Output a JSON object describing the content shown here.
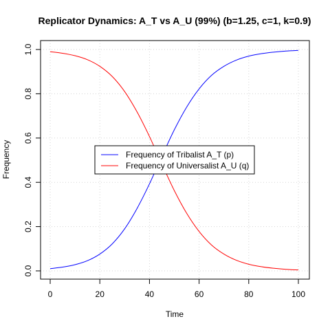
{
  "chart_data": {
    "type": "line",
    "title": "Replicator Dynamics: A_T vs A_U (99%) (b=1.25, c=1, k=0.9)",
    "xlabel": "Time",
    "ylabel": "Frequency",
    "xlim": [
      0,
      100
    ],
    "ylim": [
      0,
      1
    ],
    "xticks": [
      0,
      20,
      40,
      60,
      80,
      100
    ],
    "yticks": [
      0.0,
      0.2,
      0.4,
      0.6,
      0.8,
      1.0
    ],
    "xtick_labels": [
      "0",
      "20",
      "40",
      "60",
      "80",
      "100"
    ],
    "ytick_labels": [
      "0.0",
      "0.2",
      "0.4",
      "0.6",
      "0.8",
      "1.0"
    ],
    "grid": true,
    "legend_position": "center",
    "x": [
      0,
      5,
      10,
      15,
      20,
      25,
      30,
      35,
      40,
      45,
      50,
      55,
      60,
      65,
      70,
      75,
      80,
      85,
      90,
      95,
      100
    ],
    "series": [
      {
        "name": "Frequency of Tribalist A_T (p)",
        "color": "#0000ff",
        "values": [
          0.01,
          0.017,
          0.028,
          0.046,
          0.076,
          0.122,
          0.19,
          0.282,
          0.393,
          0.517,
          0.637,
          0.74,
          0.822,
          0.883,
          0.924,
          0.952,
          0.97,
          0.981,
          0.988,
          0.993,
          0.996
        ]
      },
      {
        "name": "Frequency of Universalist A_U (q)",
        "color": "#ff0000",
        "values": [
          0.99,
          0.983,
          0.972,
          0.954,
          0.924,
          0.878,
          0.81,
          0.718,
          0.607,
          0.483,
          0.363,
          0.26,
          0.178,
          0.117,
          0.076,
          0.048,
          0.03,
          0.019,
          0.012,
          0.007,
          0.004
        ]
      }
    ]
  }
}
